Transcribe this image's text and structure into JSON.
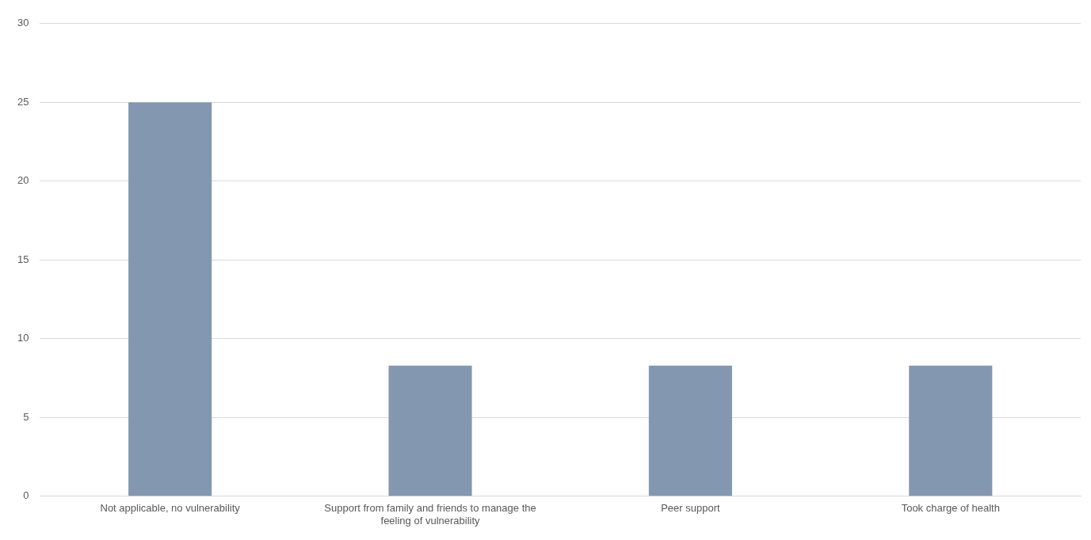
{
  "chart_data": {
    "type": "bar",
    "categories": [
      "Not applicable, no vulnerability",
      "Support from family and friends to manage the feeling of vulnerability",
      "Peer support",
      "Took charge of health"
    ],
    "values": [
      25,
      8.3,
      8.3,
      8.3
    ],
    "color": "#8497b0",
    "ylim": [
      0,
      30
    ],
    "yticks": [
      0,
      5,
      10,
      15,
      20,
      25,
      30
    ],
    "grid": "y"
  }
}
